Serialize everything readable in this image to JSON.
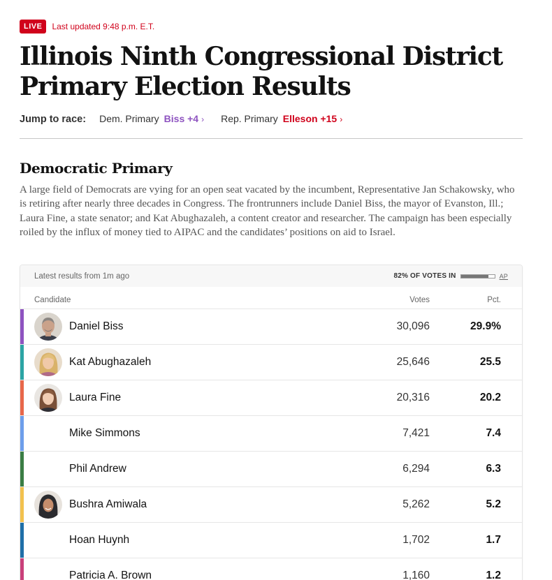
{
  "header": {
    "live_label": "LIVE",
    "updated": "Last updated 9:48 p.m. E.T.",
    "title_line1": "Illinois Ninth Congressional District",
    "title_line2": "Primary Election Results"
  },
  "jump": {
    "label": "Jump to race:",
    "links": [
      {
        "race": "Dem. Primary",
        "leader": "Biss +4",
        "chevron": "›"
      },
      {
        "race": "Rep. Primary",
        "leader": "Elleson +15",
        "chevron": "›"
      }
    ]
  },
  "section": {
    "title": "Democratic Primary",
    "description": "A large field of Democrats are vying for an open seat vacated by the incumbent, Representative Jan Schakowsky, who is retiring after nearly three decades in Congress. The frontrunners include Daniel Biss, the mayor of Evanston, Ill.; Laura Fine, a state senator; and Kat Abughazaleh, a content creator and researcher. The campaign has been especially roiled by the influx of money tied to AIPAC and the candidates’ positions on aid to Israel."
  },
  "results": {
    "latest": "Latest results from 1m ago",
    "votes_in_label": "82% OF VOTES IN",
    "votes_in_fraction": 0.82,
    "source": "AP",
    "columns": {
      "candidate": "Candidate",
      "votes": "Votes",
      "pct": "Pct."
    },
    "rows": [
      {
        "name": "Daniel Biss",
        "votes": "30,096",
        "pct": "29.9%",
        "color": "#8e53c0",
        "avatar": "man-gray-hair"
      },
      {
        "name": "Kat Abughazaleh",
        "votes": "25,646",
        "pct": "25.5",
        "color": "#2ca4a4",
        "avatar": "woman-blonde"
      },
      {
        "name": "Laura Fine",
        "votes": "20,316",
        "pct": "20.2",
        "color": "#e8674a",
        "avatar": "woman-brown-hair"
      },
      {
        "name": "Mike Simmons",
        "votes": "7,421",
        "pct": "7.4",
        "color": "#6d9eeb",
        "avatar": ""
      },
      {
        "name": "Phil Andrew",
        "votes": "6,294",
        "pct": "6.3",
        "color": "#3a7d44",
        "avatar": ""
      },
      {
        "name": "Bushra Amiwala",
        "votes": "5,262",
        "pct": "5.2",
        "color": "#f2c14e",
        "avatar": "woman-hijab"
      },
      {
        "name": "Hoan Huynh",
        "votes": "1,702",
        "pct": "1.7",
        "color": "#1f6fa8",
        "avatar": ""
      },
      {
        "name": "Patricia A. Brown",
        "votes": "1,160",
        "pct": "1.2",
        "color": "#c9407a",
        "avatar": ""
      }
    ]
  }
}
